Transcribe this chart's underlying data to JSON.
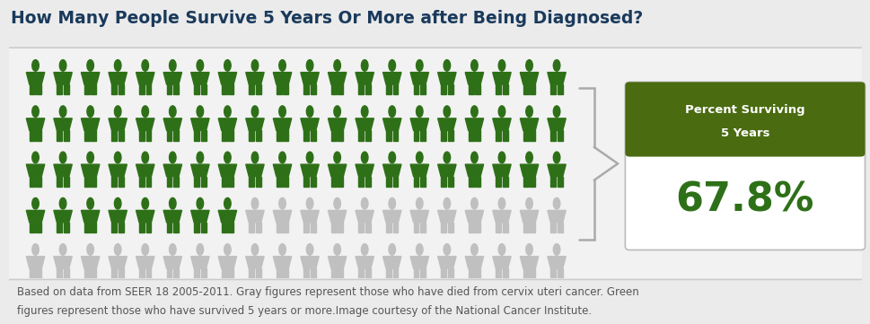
{
  "title": "How Many People Survive 5 Years Or More after Being Diagnosed?",
  "title_color": "#1a3a5c",
  "title_fontsize": 13.5,
  "percent": "67.8%",
  "percent_label_top": "Percent Surviving",
  "percent_label_bottom": "5 Years",
  "green_color": "#2e7018",
  "gray_color": "#c0c0c0",
  "header_green": "#4a6b10",
  "total_figures": 100,
  "green_figures": 68,
  "gray_figures": 32,
  "cols": 20,
  "rows": 5,
  "bg_color": "#ebebeb",
  "footnote_line1": "Based on data from SEER 18 2005-2011. Gray figures represent those who have died from cervix uteri cancer. Green",
  "footnote_line2": "figures represent those who have survived 5 years or more.",
  "footnote_line2b": "Image courtesy of the National Cancer Institute.",
  "footnote_color": "#555555",
  "footnote_fontsize": 8.5
}
